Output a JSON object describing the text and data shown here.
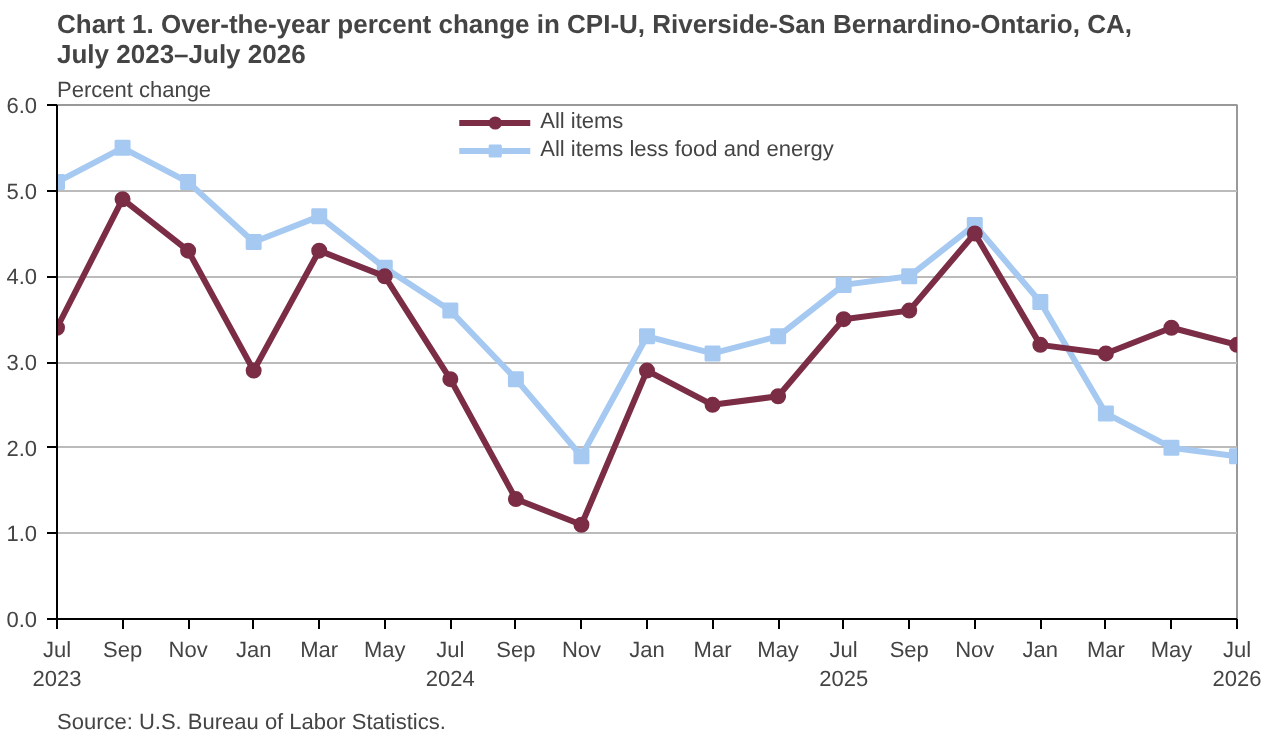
{
  "chart_data": {
    "type": "line",
    "title": "Chart 1. Over-the-year percent change in CPI-U, Riverside-San Bernardino-Ontario, CA,\nJuly 2023–July 2026",
    "ylabel": "Percent change",
    "annotations": [
      "Source: U.S. Bureau of Labor Statistics."
    ],
    "categories": [
      "Jul\n2023",
      "Sep",
      "Nov",
      "Jan",
      "Mar",
      "May",
      "Jul\n2024",
      "Sep",
      "Nov",
      "Jan",
      "Mar",
      "May",
      "Jul\n2025",
      "Sep",
      "Nov",
      "Jan",
      "Mar",
      "May",
      "Jul\n2026"
    ],
    "series": [
      {
        "name": "All items",
        "color": "#7b2d45",
        "marker": "circle",
        "values": [
          3.4,
          4.9,
          4.3,
          2.9,
          4.3,
          4.0,
          2.8,
          1.4,
          1.1,
          2.9,
          2.5,
          2.6,
          3.5,
          3.6,
          4.5,
          3.2,
          3.1,
          3.4,
          3.2
        ]
      },
      {
        "name": "All items less food and energy",
        "color": "#a6c9f2",
        "marker": "square",
        "values": [
          5.1,
          5.5,
          5.1,
          4.4,
          4.7,
          4.1,
          3.6,
          2.8,
          1.9,
          3.3,
          3.1,
          3.3,
          3.9,
          4.0,
          4.6,
          3.7,
          2.4,
          2.0,
          1.9
        ]
      }
    ],
    "ylim": [
      0,
      6
    ],
    "yticks": [
      {
        "value": 0,
        "label": "0.0"
      },
      {
        "value": 1,
        "label": "1.0"
      },
      {
        "value": 2,
        "label": "2.0"
      },
      {
        "value": 3,
        "label": "3.0"
      },
      {
        "value": 4,
        "label": "4.0"
      },
      {
        "value": 5,
        "label": "5.0"
      },
      {
        "value": 6,
        "label": "6.0"
      }
    ],
    "grid": "y",
    "legend": "top",
    "line_style": "solid"
  }
}
